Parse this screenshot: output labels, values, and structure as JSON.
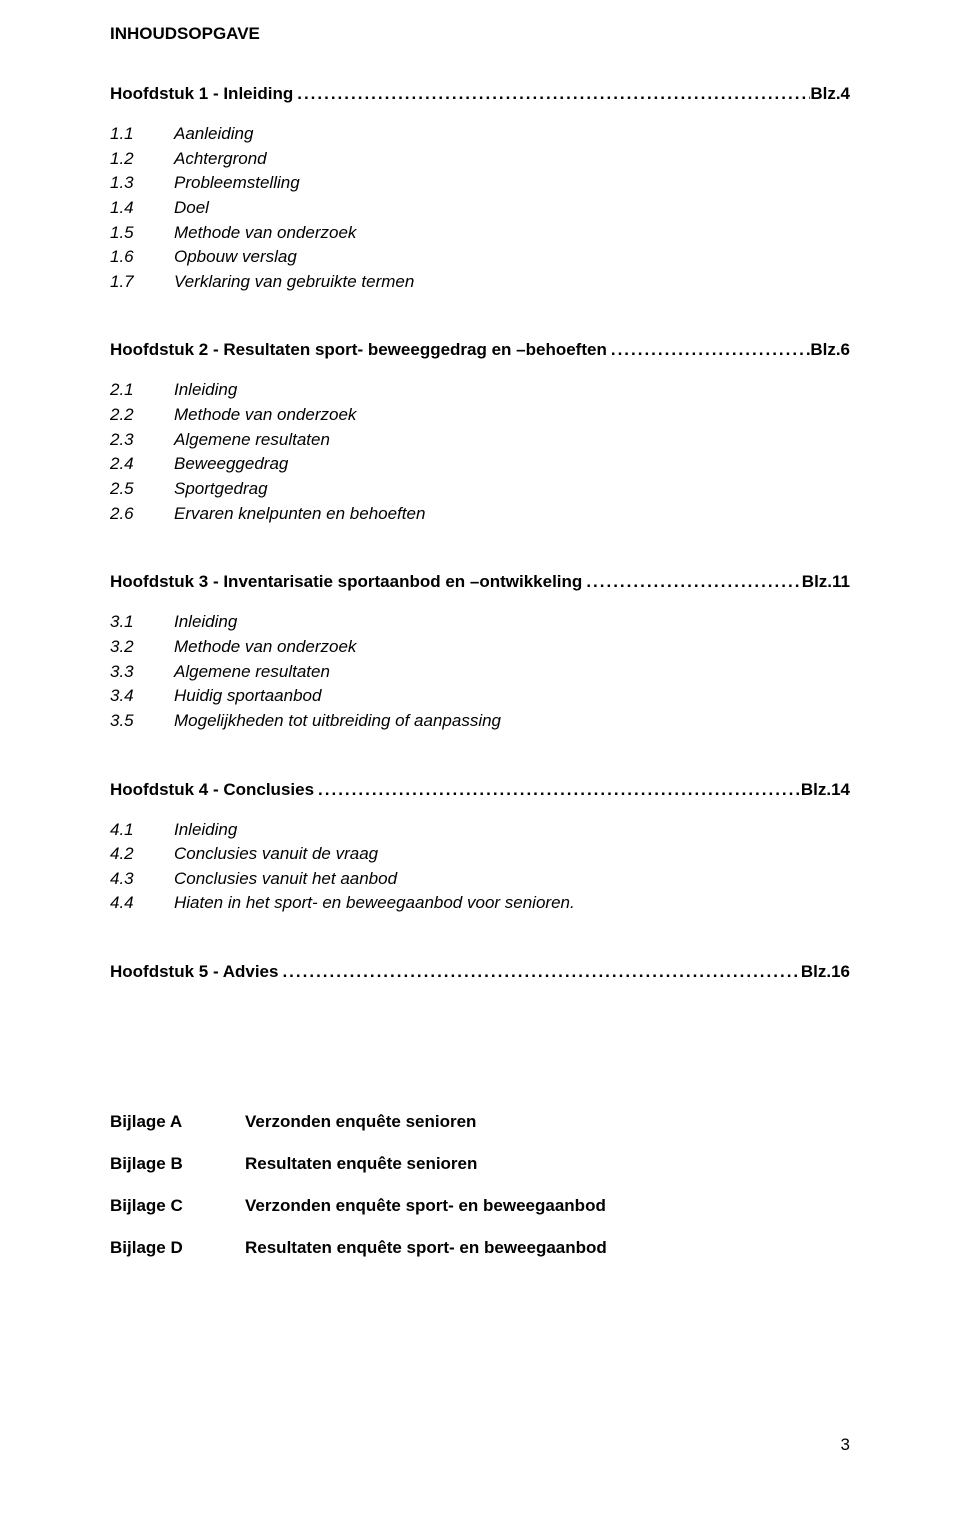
{
  "title": "INHOUDSOPGAVE",
  "chapters": [
    {
      "heading_label": "Hoofdstuk 1  -  Inleiding",
      "page_ref": "Blz.4",
      "items": [
        {
          "num": "1.1",
          "txt": "Aanleiding"
        },
        {
          "num": "1.2",
          "txt": "Achtergrond"
        },
        {
          "num": "1.3",
          "txt": "Probleemstelling"
        },
        {
          "num": "1.4",
          "txt": "Doel"
        },
        {
          "num": "1.5",
          "txt": "Methode van onderzoek"
        },
        {
          "num": "1.6",
          "txt": "Opbouw verslag"
        },
        {
          "num": "1.7",
          "txt": "Verklaring van gebruikte termen"
        }
      ]
    },
    {
      "heading_label": "Hoofdstuk 2  -  Resultaten sport- beweeggedrag en –behoeften",
      "page_ref": "Blz.6",
      "items": [
        {
          "num": "2.1",
          "txt": "Inleiding"
        },
        {
          "num": "2.2",
          "txt": "Methode van onderzoek"
        },
        {
          "num": "2.3",
          "txt": "Algemene resultaten"
        },
        {
          "num": "2.4",
          "txt": "Beweeggedrag"
        },
        {
          "num": "2.5",
          "txt": "Sportgedrag"
        },
        {
          "num": "2.6",
          "txt": "Ervaren knelpunten en behoeften"
        }
      ]
    },
    {
      "heading_label": "Hoofdstuk 3  -  Inventarisatie sportaanbod en –ontwikkeling",
      "page_ref": "Blz.11",
      "items": [
        {
          "num": "3.1",
          "txt": "Inleiding"
        },
        {
          "num": "3.2",
          "txt": "Methode van onderzoek"
        },
        {
          "num": "3.3",
          "txt": "Algemene resultaten"
        },
        {
          "num": "3.4",
          "txt": "Huidig sportaanbod"
        },
        {
          "num": "3.5",
          "txt": "Mogelijkheden tot uitbreiding of aanpassing"
        }
      ]
    },
    {
      "heading_label": "Hoofdstuk 4  -  Conclusies",
      "page_ref": "Blz.14",
      "items": [
        {
          "num": "4.1",
          "txt": "Inleiding"
        },
        {
          "num": "4.2",
          "txt": "Conclusies vanuit de vraag"
        },
        {
          "num": "4.3",
          "txt": "Conclusies vanuit het aanbod"
        },
        {
          "num": "4.4",
          "txt": "Hiaten in het sport- en beweegaanbod voor senioren."
        }
      ]
    },
    {
      "heading_label": "Hoofdstuk 5  -  Advies",
      "page_ref": "Blz.16",
      "items": []
    }
  ],
  "bijlagen": [
    {
      "label": "Bijlage A",
      "desc": "Verzonden enquête senioren"
    },
    {
      "label": "Bijlage B",
      "desc": "Resultaten enquête senioren"
    },
    {
      "label": "Bijlage C",
      "desc": "Verzonden enquête sport- en beweegaanbod"
    },
    {
      "label": "Bijlage D",
      "desc": "Resultaten enquête sport- en beweegaanbod"
    }
  ],
  "dots": ".........................................................................................................................................................................",
  "page_number": "3"
}
